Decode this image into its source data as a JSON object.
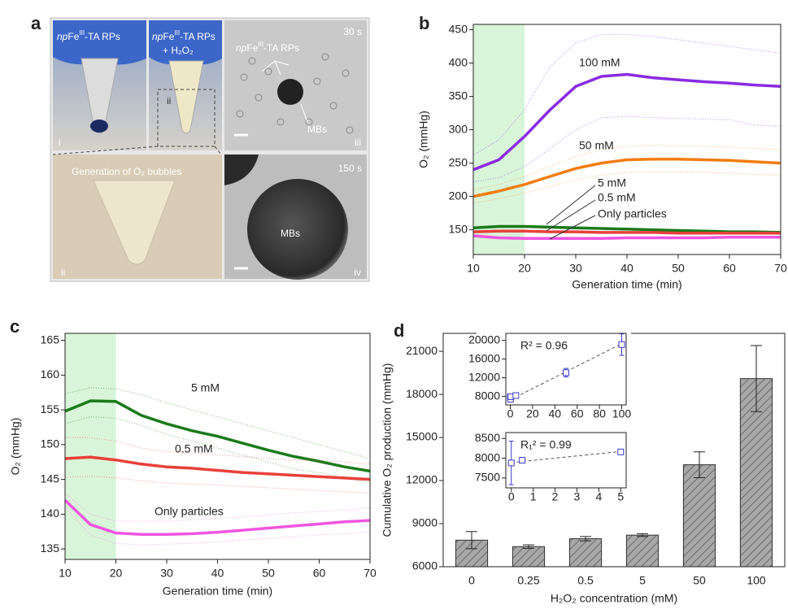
{
  "panel_a": {
    "label": "a",
    "photos": [
      {
        "numeral": "i",
        "caption": {
          "italic": "np",
          "text": "Fe",
          "sup": "III",
          "rest": "-TA RPs"
        }
      },
      {
        "numeral": "ii",
        "caption": {
          "italic": "np",
          "text": "Fe",
          "sup": "III",
          "rest": "-TA RPs"
        },
        "caption_line2": "+ H₂O₂"
      },
      {
        "numeral": "iii",
        "time": "30 s",
        "caption": {
          "italic": "np",
          "text": "Fe",
          "sup": "III",
          "rest": "-TA RPs"
        },
        "marker": "MBs"
      },
      {
        "numeral": "ii",
        "caption_text": "Generation of O₂ bubbles"
      },
      {
        "numeral": "iv",
        "time": "150 s",
        "marker": "MBs"
      }
    ]
  },
  "chart_data": [
    {
      "type": "line",
      "label": "b",
      "x_label": "Generation time (min)",
      "y_label": "O₂ (mmHg)",
      "x": [
        10,
        15,
        20,
        25,
        30,
        35,
        40,
        45,
        50,
        55,
        60,
        65,
        70
      ],
      "xlim": [
        10,
        70
      ],
      "xticks": [
        10,
        20,
        30,
        40,
        50,
        60,
        70
      ],
      "ylim": [
        113,
        458
      ],
      "yticks": [
        150,
        200,
        250,
        300,
        350,
        400,
        450
      ],
      "shade": [
        10,
        20
      ],
      "shade_color": "#d9f5d9",
      "series": [
        {
          "name": "100 mM",
          "color": "#8a2be2",
          "values": [
            240,
            255,
            290,
            330,
            365,
            380,
            383,
            378,
            375,
            372,
            370,
            367,
            365
          ],
          "upper": [
            262,
            285,
            330,
            395,
            430,
            443,
            443,
            440,
            435,
            430,
            425,
            420,
            415
          ],
          "lower": [
            222,
            228,
            245,
            272,
            300,
            318,
            320,
            318,
            317,
            316,
            315,
            307,
            305
          ]
        },
        {
          "name": "50 mM",
          "color": "#f07d10",
          "values": [
            200,
            208,
            218,
            230,
            242,
            250,
            255,
            256,
            256,
            255,
            254,
            252,
            250
          ],
          "upper": [
            210,
            218,
            230,
            245,
            260,
            270,
            275,
            277,
            276,
            275,
            274,
            272,
            270
          ],
          "lower": [
            190,
            197,
            205,
            215,
            225,
            232,
            236,
            237,
            237,
            236,
            235,
            233,
            232
          ]
        },
        {
          "name": "5 mM",
          "color": "#1a7a1a",
          "values": [
            153,
            155,
            155,
            154,
            153,
            152,
            151,
            150,
            149,
            148,
            147,
            147,
            146
          ]
        },
        {
          "name": "0.5 mM",
          "color": "#e8403a",
          "values": [
            147,
            148,
            148,
            147,
            147,
            146,
            146,
            146,
            145,
            145,
            145,
            145,
            145
          ]
        },
        {
          "name": "Only particles",
          "color": "#f055e0",
          "values": [
            141,
            138,
            137,
            137,
            137,
            137,
            138,
            138,
            138,
            138,
            139,
            139,
            139
          ]
        }
      ]
    },
    {
      "type": "line",
      "label": "c",
      "x_label": "Generation time (min)",
      "y_label": "O₂ (mmHg)",
      "x": [
        10,
        15,
        20,
        25,
        30,
        35,
        40,
        45,
        50,
        55,
        60,
        65,
        70
      ],
      "xlim": [
        10,
        70
      ],
      "xticks": [
        10,
        20,
        30,
        40,
        50,
        60,
        70
      ],
      "ylim": [
        133.5,
        166
      ],
      "yticks": [
        135,
        140,
        145,
        150,
        155,
        160,
        165
      ],
      "shade": [
        10,
        20
      ],
      "shade_color": "#d9f5d9",
      "series": [
        {
          "name": "5 mM",
          "color": "#1a7a1a",
          "values": [
            154.8,
            156.3,
            156.2,
            154.2,
            153.0,
            152.0,
            151.2,
            150.2,
            149.2,
            148.3,
            147.6,
            146.8,
            146.2
          ],
          "upper": [
            157.3,
            158.2,
            158,
            157.2,
            156,
            155,
            154,
            153,
            152,
            151,
            150,
            149,
            148
          ],
          "lower": [
            153,
            154,
            153.8,
            152.8,
            151.5,
            150.5,
            149.5,
            148.5,
            147.5,
            146.5,
            146,
            145.2,
            144.5
          ]
        },
        {
          "name": "0.5 mM",
          "color": "#e8403a",
          "values": [
            148,
            148.2,
            147.8,
            147.2,
            146.8,
            146.6,
            146.3,
            146,
            145.8,
            145.6,
            145.4,
            145.2,
            145
          ],
          "upper": [
            151,
            151,
            150.5,
            149.5,
            149,
            148.8,
            148.5,
            148.3,
            148,
            147.8,
            147.7,
            147.5,
            147.2
          ],
          "lower": [
            145.3,
            145.5,
            145.2,
            144.8,
            144.5,
            144.3,
            144.2,
            144,
            143.8,
            143.6,
            143.4,
            143.2,
            143
          ]
        },
        {
          "name": "Only particles",
          "color": "#f055e0",
          "values": [
            142,
            138.5,
            137.3,
            137.1,
            137.1,
            137.2,
            137.4,
            137.7,
            138,
            138.3,
            138.6,
            138.9,
            139.1
          ],
          "upper": [
            143,
            140,
            139,
            139,
            139,
            139.2,
            139.4,
            139.6,
            139.9,
            140.2,
            140.4,
            140.6,
            140.9
          ],
          "lower": [
            141,
            137,
            135.8,
            135.6,
            135.7,
            135.8,
            136,
            136.3,
            136.5,
            136.8,
            137,
            137.2,
            137.4
          ]
        }
      ]
    },
    {
      "type": "bar",
      "label": "d",
      "x_label": "H₂O₂  concentration (mM)",
      "y_label": "Cumulative O₂ production (mmHg)",
      "categories": [
        "0",
        "0.25",
        "0.5",
        "5",
        "50",
        "100"
      ],
      "values": [
        7850,
        7400,
        7950,
        8200,
        13100,
        19100
      ],
      "errors": [
        600,
        120,
        150,
        100,
        900,
        2300
      ],
      "color": "#a8a8a8",
      "ylim": [
        6000,
        22250
      ],
      "yticks": [
        6000,
        9000,
        12000,
        15000,
        18000,
        21000
      ]
    },
    {
      "type": "scatter",
      "annotation": "R² = 0.96",
      "color": "#3a3ad0",
      "x": [
        0,
        0.25,
        0.5,
        5,
        50,
        100
      ],
      "values": [
        7850,
        7400,
        7950,
        8200,
        13100,
        19100
      ],
      "errors": [
        600,
        120,
        150,
        100,
        900,
        2300
      ],
      "fit": {
        "x": [
          0,
          100
        ],
        "y": [
          7300,
          19300
        ]
      },
      "xlim": [
        -4,
        104
      ],
      "xticks": [
        0,
        20,
        40,
        60,
        80,
        100
      ],
      "ylim": [
        6200,
        21500
      ],
      "yticks": [
        8000,
        12000,
        16000,
        20000
      ]
    },
    {
      "type": "scatter",
      "annotation": "R₁² = 0.99",
      "color": "#3a3ad0",
      "x": [
        0,
        0.5,
        5
      ],
      "values": [
        7880,
        7950,
        8160
      ],
      "errors": [
        550,
        70,
        60
      ],
      "fit": {
        "x": [
          0,
          5
        ],
        "y": [
          7890,
          8170
        ]
      },
      "xlim": [
        -0.25,
        5.25
      ],
      "xticks": [
        0,
        1,
        2,
        3,
        4,
        5
      ],
      "ylim": [
        7250,
        8650
      ],
      "yticks": [
        7500,
        8000,
        8500
      ]
    }
  ]
}
